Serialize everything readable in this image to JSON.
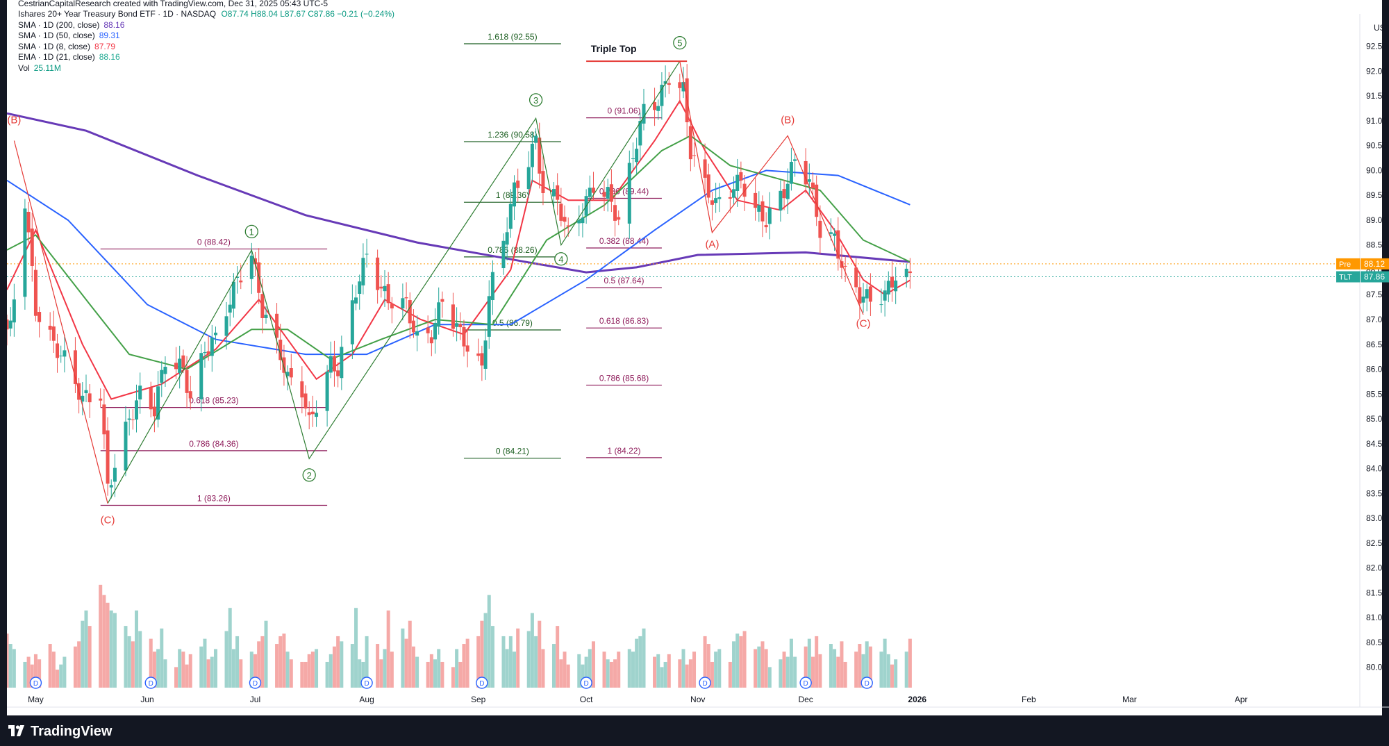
{
  "attribution": "CestrianCapitalResearch created with TradingView.com, Dec 31, 2025 05:43 UTC-5",
  "header": {
    "title": "Ishares 20+ Year Treasury Bond ETF · 1D · NASDAQ",
    "ohlc": "O87.74  H88.04  L87.67  C87.86  −0.21 (−0.24%)",
    "indicators": [
      {
        "label": "SMA · 1D (200, close)",
        "value": "88.16",
        "color": "#673ab7"
      },
      {
        "label": "SMA · 1D (50, close)",
        "value": "89.31",
        "color": "#2962ff"
      },
      {
        "label": "SMA · 1D (8, close)",
        "value": "87.79",
        "color": "#f23645"
      },
      {
        "label": "EMA · 1D (21, close)",
        "value": "88.16",
        "color": "#22ab94"
      },
      {
        "label": "Vol",
        "value": "25.11M",
        "color": "#089981"
      }
    ]
  },
  "footer": {
    "brand": "TradingView"
  },
  "colors": {
    "up": "#26a69a",
    "down": "#ef5350",
    "wave_green": "#2e7d32",
    "wave_red": "#e53935",
    "fib_green": "#1b5e20",
    "fib_red": "#8e1b5a",
    "sma200": "#673ab7",
    "sma50": "#2962ff",
    "sma8": "#f23645",
    "ema21": "#43a047"
  },
  "chart_data": {
    "type": "candlestick",
    "title": "Ishares 20+ Year Treasury Bond ETF · 1D · NASDAQ",
    "currency": "USD",
    "ylim": [
      79.8,
      92.9
    ],
    "yticks": [
      "92.50",
      "92.00",
      "91.50",
      "91.00",
      "90.50",
      "90.00",
      "89.50",
      "89.00",
      "88.50",
      "88.00",
      "87.50",
      "87.00",
      "86.50",
      "86.00",
      "85.50",
      "85.00",
      "84.50",
      "84.00",
      "83.50",
      "83.00",
      "82.50",
      "82.00",
      "81.50",
      "81.00",
      "80.50",
      "80.00"
    ],
    "xticks": [
      "May",
      "Jun",
      "Jul",
      "Aug",
      "Sep",
      "Oct",
      "Nov",
      "Dec",
      "2026",
      "Feb",
      "Mar",
      "Apr"
    ],
    "x_range": [
      "2025-04-23",
      "2026-05-04"
    ],
    "price_tags": [
      {
        "label": "Pre",
        "value": "88.12",
        "color": "#ff9800"
      },
      {
        "label": "TLT",
        "value": "87.86",
        "color": "#26a69a"
      }
    ],
    "pivots": [
      {
        "date": "2025-04-24",
        "price": 86.8
      },
      {
        "date": "2025-04-28",
        "price": 89.4
      },
      {
        "date": "2025-05-01",
        "price": 87.2
      },
      {
        "date": "2025-05-06",
        "price": 86.5
      },
      {
        "date": "2025-05-09",
        "price": 86.2
      },
      {
        "date": "2025-05-14",
        "price": 85.4
      },
      {
        "date": "2025-05-19",
        "price": 85.5
      },
      {
        "date": "2025-05-21",
        "price": 83.6
      },
      {
        "date": "2025-05-27",
        "price": 85.0
      },
      {
        "date": "2025-05-30",
        "price": 85.5
      },
      {
        "date": "2025-06-03",
        "price": 85.2
      },
      {
        "date": "2025-06-06",
        "price": 86.2
      },
      {
        "date": "2025-06-11",
        "price": 86.0
      },
      {
        "date": "2025-06-13",
        "price": 85.4
      },
      {
        "date": "2025-06-17",
        "price": 86.4
      },
      {
        "date": "2025-06-20",
        "price": 86.6
      },
      {
        "date": "2025-06-26",
        "price": 87.8
      },
      {
        "date": "2025-06-30",
        "price": 88.3
      },
      {
        "date": "2025-07-03",
        "price": 87.2
      },
      {
        "date": "2025-07-08",
        "price": 86.3
      },
      {
        "date": "2025-07-10",
        "price": 85.8
      },
      {
        "date": "2025-07-14",
        "price": 85.6
      },
      {
        "date": "2025-07-16",
        "price": 84.9
      },
      {
        "date": "2025-07-18",
        "price": 85.3
      },
      {
        "date": "2025-07-22",
        "price": 86.1
      },
      {
        "date": "2025-07-24",
        "price": 86.0
      },
      {
        "date": "2025-07-29",
        "price": 87.6
      },
      {
        "date": "2025-08-01",
        "price": 88.3
      },
      {
        "date": "2025-08-05",
        "price": 87.6
      },
      {
        "date": "2025-08-07",
        "price": 87.4
      },
      {
        "date": "2025-08-12",
        "price": 87.3
      },
      {
        "date": "2025-08-15",
        "price": 86.6
      },
      {
        "date": "2025-08-19",
        "price": 86.7
      },
      {
        "date": "2025-08-22",
        "price": 87.4
      },
      {
        "date": "2025-08-27",
        "price": 86.7
      },
      {
        "date": "2025-09-02",
        "price": 86.0
      },
      {
        "date": "2025-09-04",
        "price": 87.5
      },
      {
        "date": "2025-09-08",
        "price": 88.6
      },
      {
        "date": "2025-09-11",
        "price": 89.6
      },
      {
        "date": "2025-09-15",
        "price": 90.2
      },
      {
        "date": "2025-09-17",
        "price": 90.6
      },
      {
        "date": "2025-09-19",
        "price": 89.6
      },
      {
        "date": "2025-09-23",
        "price": 89.4
      },
      {
        "date": "2025-09-26",
        "price": 88.7
      },
      {
        "date": "2025-09-30",
        "price": 89.2
      },
      {
        "date": "2025-10-03",
        "price": 89.7
      },
      {
        "date": "2025-10-07",
        "price": 89.5
      },
      {
        "date": "2025-10-10",
        "price": 89.0
      },
      {
        "date": "2025-10-14",
        "price": 90.3
      },
      {
        "date": "2025-10-17",
        "price": 91.2
      },
      {
        "date": "2025-10-21",
        "price": 91.4
      },
      {
        "date": "2025-10-24",
        "price": 91.9
      },
      {
        "date": "2025-10-28",
        "price": 91.6
      },
      {
        "date": "2025-10-30",
        "price": 90.4
      },
      {
        "date": "2025-11-03",
        "price": 89.7
      },
      {
        "date": "2025-11-06",
        "price": 89.3
      },
      {
        "date": "2025-11-10",
        "price": 89.6
      },
      {
        "date": "2025-11-13",
        "price": 89.8
      },
      {
        "date": "2025-11-17",
        "price": 89.2
      },
      {
        "date": "2025-11-20",
        "price": 89.0
      },
      {
        "date": "2025-11-25",
        "price": 89.6
      },
      {
        "date": "2025-11-28",
        "price": 90.2
      },
      {
        "date": "2025-12-02",
        "price": 89.8
      },
      {
        "date": "2025-12-05",
        "price": 88.8
      },
      {
        "date": "2025-12-09",
        "price": 88.6
      },
      {
        "date": "2025-12-12",
        "price": 87.9
      },
      {
        "date": "2025-12-16",
        "price": 87.5
      },
      {
        "date": "2025-12-19",
        "price": 87.4
      },
      {
        "date": "2025-12-23",
        "price": 87.5
      },
      {
        "date": "2025-12-26",
        "price": 87.9
      },
      {
        "date": "2025-12-30",
        "price": 87.86
      }
    ],
    "lines": [
      {
        "name": "SMA 200",
        "color": "#673ab7",
        "width": 3,
        "points": [
          [
            "2025-04-23",
            91.15
          ],
          [
            "2025-05-15",
            90.8
          ],
          [
            "2025-06-15",
            89.9
          ],
          [
            "2025-07-15",
            89.1
          ],
          [
            "2025-08-15",
            88.55
          ],
          [
            "2025-09-15",
            88.15
          ],
          [
            "2025-10-01",
            87.95
          ],
          [
            "2025-10-15",
            88.05
          ],
          [
            "2025-11-01",
            88.3
          ],
          [
            "2025-12-01",
            88.35
          ],
          [
            "2025-12-30",
            88.16
          ]
        ]
      },
      {
        "name": "SMA 50",
        "color": "#2962ff",
        "width": 2,
        "points": [
          [
            "2025-04-23",
            89.8
          ],
          [
            "2025-05-10",
            89.0
          ],
          [
            "2025-06-01",
            87.3
          ],
          [
            "2025-06-20",
            86.6
          ],
          [
            "2025-07-15",
            86.3
          ],
          [
            "2025-08-01",
            86.3
          ],
          [
            "2025-08-20",
            86.9
          ],
          [
            "2025-09-10",
            86.9
          ],
          [
            "2025-10-01",
            87.8
          ],
          [
            "2025-10-20",
            88.8
          ],
          [
            "2025-11-05",
            89.6
          ],
          [
            "2025-11-20",
            90.0
          ],
          [
            "2025-12-10",
            89.9
          ],
          [
            "2025-12-30",
            89.31
          ]
        ]
      },
      {
        "name": "SMA 8",
        "color": "#f23645",
        "width": 2,
        "points": [
          [
            "2025-04-23",
            87.6
          ],
          [
            "2025-05-01",
            88.8
          ],
          [
            "2025-05-14",
            86.5
          ],
          [
            "2025-05-22",
            85.4
          ],
          [
            "2025-06-05",
            85.7
          ],
          [
            "2025-06-20",
            86.4
          ],
          [
            "2025-07-02",
            87.4
          ],
          [
            "2025-07-10",
            86.6
          ],
          [
            "2025-07-18",
            85.8
          ],
          [
            "2025-07-28",
            86.3
          ],
          [
            "2025-08-06",
            87.4
          ],
          [
            "2025-08-16",
            87.0
          ],
          [
            "2025-08-28",
            86.7
          ],
          [
            "2025-09-10",
            88.0
          ],
          [
            "2025-09-16",
            89.8
          ],
          [
            "2025-09-26",
            89.4
          ],
          [
            "2025-10-08",
            89.4
          ],
          [
            "2025-10-20",
            90.6
          ],
          [
            "2025-10-27",
            91.4
          ],
          [
            "2025-11-03",
            90.4
          ],
          [
            "2025-11-12",
            89.4
          ],
          [
            "2025-11-24",
            89.2
          ],
          [
            "2025-12-01",
            89.6
          ],
          [
            "2025-12-09",
            88.8
          ],
          [
            "2025-12-17",
            87.8
          ],
          [
            "2025-12-23",
            87.5
          ],
          [
            "2025-12-30",
            87.79
          ]
        ]
      },
      {
        "name": "EMA 21",
        "color": "#43a047",
        "width": 2,
        "points": [
          [
            "2025-04-23",
            88.4
          ],
          [
            "2025-05-01",
            88.7
          ],
          [
            "2025-05-15",
            87.4
          ],
          [
            "2025-05-27",
            86.3
          ],
          [
            "2025-06-12",
            86.0
          ],
          [
            "2025-06-30",
            86.8
          ],
          [
            "2025-07-10",
            86.8
          ],
          [
            "2025-07-22",
            86.2
          ],
          [
            "2025-08-05",
            86.6
          ],
          [
            "2025-08-20",
            87.0
          ],
          [
            "2025-09-05",
            86.9
          ],
          [
            "2025-09-20",
            88.6
          ],
          [
            "2025-10-06",
            89.3
          ],
          [
            "2025-10-22",
            90.4
          ],
          [
            "2025-10-30",
            90.7
          ],
          [
            "2025-11-10",
            90.1
          ],
          [
            "2025-11-25",
            89.8
          ],
          [
            "2025-12-05",
            89.6
          ],
          [
            "2025-12-17",
            88.6
          ],
          [
            "2025-12-30",
            88.16
          ]
        ]
      }
    ],
    "wave_lines": [
      {
        "color": "#2e7d32",
        "points": [
          [
            "2025-05-21",
            83.3
          ],
          [
            "2025-06-30",
            88.4
          ],
          [
            "2025-07-16",
            84.2
          ],
          [
            "2025-09-17",
            91.05
          ],
          [
            "2025-09-24",
            88.5
          ],
          [
            "2025-10-27",
            92.2
          ]
        ]
      },
      {
        "color": "#e53935",
        "points": [
          [
            "2025-04-25",
            90.6
          ],
          [
            "2025-05-21",
            83.3
          ]
        ]
      },
      {
        "color": "#e53935",
        "points": [
          [
            "2025-10-27",
            92.2
          ],
          [
            "2025-11-05",
            88.75
          ],
          [
            "2025-11-26",
            90.7
          ],
          [
            "2025-12-17",
            87.1
          ]
        ]
      }
    ],
    "wave_labels": [
      {
        "text": "(B)",
        "date": "2025-04-25",
        "price": 90.95,
        "color": "#e53935"
      },
      {
        "text": "(C)",
        "date": "2025-05-21",
        "price": 82.9,
        "color": "#e53935"
      },
      {
        "text": "1",
        "date": "2025-06-30",
        "price": 88.7,
        "color": "#2e7d32",
        "circled": true
      },
      {
        "text": "2",
        "date": "2025-07-16",
        "price": 83.8,
        "color": "#2e7d32",
        "circled": true
      },
      {
        "text": "3",
        "date": "2025-09-17",
        "price": 91.35,
        "color": "#2e7d32",
        "circled": true
      },
      {
        "text": "4",
        "date": "2025-09-24",
        "price": 88.15,
        "color": "#2e7d32",
        "circled": true
      },
      {
        "text": "5",
        "date": "2025-10-27",
        "price": 92.5,
        "color": "#2e7d32",
        "circled": true
      },
      {
        "text": "(A)",
        "date": "2025-11-05",
        "price": 88.45,
        "color": "#e53935"
      },
      {
        "text": "(B)",
        "date": "2025-11-26",
        "price": 90.95,
        "color": "#e53935"
      },
      {
        "text": "(C)",
        "date": "2025-12-17",
        "price": 86.85,
        "color": "#e53935"
      }
    ],
    "fib_sets": [
      {
        "color": "#8e1b5a",
        "start": "2025-05-19",
        "end": "2025-07-21",
        "levels": [
          {
            "label": "0 (88.42)",
            "price": 88.42
          },
          {
            "label": "0.618 (85.23)",
            "price": 85.23
          },
          {
            "label": "0.786 (84.36)",
            "price": 84.36
          },
          {
            "label": "1 (83.26)",
            "price": 83.26
          }
        ]
      },
      {
        "color": "#1b5e20",
        "start": "2025-08-28",
        "end": "2025-09-24",
        "levels": [
          {
            "label": "1.618 (92.55)",
            "price": 92.55
          },
          {
            "label": "1.236 (90.58)",
            "price": 90.58
          },
          {
            "label": "1 (89.36)",
            "price": 89.36
          },
          {
            "label": "0.786 (88.26)",
            "price": 88.26
          },
          {
            "label": "0.5 (86.79)",
            "price": 86.79
          },
          {
            "label": "0 (84.21)",
            "price": 84.21
          }
        ]
      },
      {
        "color": "#8e1b5a",
        "start": "2025-10-01",
        "end": "2025-10-22",
        "levels": [
          {
            "label": "0 (91.06)",
            "price": 91.06
          },
          {
            "label": "0.236 (89.44)",
            "price": 89.44
          },
          {
            "label": "0.382 (88.44)",
            "price": 88.44
          },
          {
            "label": "0.5 (87.64)",
            "price": 87.64
          },
          {
            "label": "0.618 (86.83)",
            "price": 86.83
          },
          {
            "label": "0.786 (85.68)",
            "price": 85.68
          },
          {
            "label": "1 (84.22)",
            "price": 84.22
          }
        ]
      }
    ],
    "annotations": [
      {
        "text": "Triple Top",
        "date": "2025-10-10",
        "price": 92.38,
        "line_start": "2025-10-01",
        "line_end": "2025-10-29",
        "line_price": 92.2
      }
    ],
    "dividend_dates": [
      "2025-05-01",
      "2025-06-02",
      "2025-07-01",
      "2025-08-01",
      "2025-09-02",
      "2025-10-01",
      "2025-11-03",
      "2025-12-01",
      "2025-12-18"
    ],
    "volume": {
      "ylim": [
        0,
        135
      ],
      "values_millions": [
        42,
        34,
        30,
        20,
        24,
        18,
        26,
        22,
        34,
        28,
        14,
        18,
        24,
        32,
        36,
        52,
        60,
        48,
        80,
        72,
        66,
        60,
        58,
        48,
        40,
        36,
        60,
        44,
        38,
        28,
        30,
        46,
        22,
        16,
        30,
        28,
        18,
        26,
        32,
        38,
        22,
        24,
        30,
        44,
        62,
        30,
        40,
        22,
        28,
        26,
        36,
        40,
        52,
        34,
        40,
        42,
        28,
        22,
        20,
        20,
        26,
        28,
        30,
        20,
        26,
        32,
        40,
        36,
        34,
        62,
        22,
        20,
        40,
        34,
        22,
        30,
        60,
        28,
        46,
        38,
        52,
        32,
        24,
        20,
        26,
        22,
        30,
        20,
        16,
        30,
        20,
        34,
        38,
        40,
        52,
        58,
        72,
        48,
        40,
        30,
        40,
        28,
        46,
        44,
        58,
        40,
        52,
        30,
        34,
        48,
        22,
        28,
        18,
        26,
        18,
        24,
        30,
        36,
        28,
        22,
        20,
        22,
        28,
        30,
        28,
        38,
        40,
        46,
        24,
        26,
        16,
        20,
        26,
        22,
        30,
        18,
        22,
        28,
        40,
        34,
        20,
        28,
        30,
        20,
        36,
        42,
        40,
        44,
        30,
        32,
        36,
        30,
        16,
        22,
        28,
        24,
        38,
        24,
        32,
        38,
        24,
        40,
        26,
        34,
        30,
        24,
        36,
        20,
        28,
        34,
        26,
        36,
        32,
        28,
        38,
        26,
        18,
        22,
        28,
        38,
        40,
        26,
        34,
        26,
        24
      ]
    }
  }
}
